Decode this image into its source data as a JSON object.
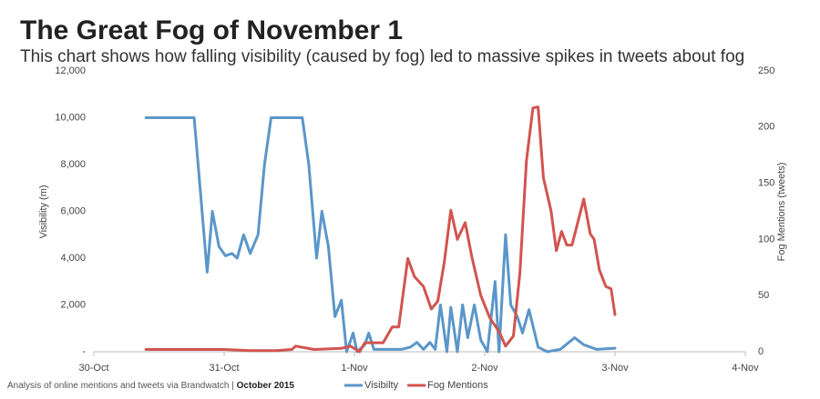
{
  "chart_data": {
    "type": "line",
    "title": "The Great Fog of November 1",
    "subtitle": "This chart shows how falling visibility (caused by fog) led to massive spikes in tweets about fog",
    "y_label": "Visibility (m)",
    "y2_label": "Fog Mentions (tweets)",
    "source": "Analysis of online mentions and tweets via Brandwatch |",
    "source_date": "October 2015",
    "xlim": [
      0,
      5
    ],
    "xticks": [
      {
        "value": 0,
        "label": "30-Oct"
      },
      {
        "value": 1,
        "label": "31-Oct"
      },
      {
        "value": 2,
        "label": "1-Nov"
      },
      {
        "value": 3,
        "label": "2-Nov"
      },
      {
        "value": 4,
        "label": "3-Nov"
      },
      {
        "value": 5,
        "label": "4-Nov"
      }
    ],
    "ylim": [
      0,
      12000
    ],
    "yticks": [
      {
        "value": 0,
        "label": "-"
      },
      {
        "value": 2000,
        "label": "2,000"
      },
      {
        "value": 4000,
        "label": "4,000"
      },
      {
        "value": 6000,
        "label": "6,000"
      },
      {
        "value": 8000,
        "label": "8,000"
      },
      {
        "value": 10000,
        "label": "10,000"
      },
      {
        "value": 12000,
        "label": "12,000"
      }
    ],
    "y2lim": [
      0,
      250
    ],
    "y2ticks": [
      0,
      50,
      100,
      150,
      200,
      250
    ],
    "legend": "bottom",
    "series": [
      {
        "name": "Visibilty",
        "color": "#5b96c9",
        "x": [
          0.4,
          0.77,
          0.87,
          0.91,
          0.96,
          1.01,
          1.06,
          1.1,
          1.15,
          1.2,
          1.26,
          1.31,
          1.36,
          1.6,
          1.65,
          1.71,
          1.75,
          1.8,
          1.85,
          1.9,
          1.94,
          1.99,
          2.02,
          2.08,
          2.11,
          2.15,
          2.36,
          2.43,
          2.48,
          2.53,
          2.58,
          2.62,
          2.66,
          2.71,
          2.74,
          2.79,
          2.83,
          2.87,
          2.92,
          2.97,
          3.02,
          3.08,
          3.11,
          3.16,
          3.2,
          3.25,
          3.29,
          3.34,
          3.41,
          3.48,
          3.58,
          3.69,
          3.76,
          3.86,
          4.0
        ],
        "values": [
          10000,
          10000,
          3400,
          6000,
          4500,
          4100,
          4200,
          4000,
          5000,
          4200,
          5000,
          8000,
          10000,
          10000,
          8000,
          4000,
          6000,
          4500,
          1500,
          2200,
          0,
          800,
          0,
          300,
          800,
          100,
          100,
          200,
          400,
          100,
          400,
          100,
          2000,
          0,
          1900,
          0,
          2000,
          600,
          2000,
          500,
          0,
          3000,
          0,
          5000,
          2000,
          1500,
          800,
          1800,
          200,
          0,
          100,
          600,
          300,
          100,
          150
        ]
      },
      {
        "name": "Fog Mentions",
        "color": "#d25450",
        "axis": "y2",
        "x": [
          0.4,
          0.6,
          0.8,
          1.0,
          1.2,
          1.4,
          1.52,
          1.55,
          1.69,
          1.9,
          1.97,
          2.04,
          2.08,
          2.22,
          2.29,
          2.34,
          2.41,
          2.46,
          2.53,
          2.59,
          2.64,
          2.69,
          2.74,
          2.79,
          2.85,
          2.9,
          2.97,
          3.04,
          3.11,
          3.16,
          3.22,
          3.27,
          3.32,
          3.37,
          3.41,
          3.45,
          3.51,
          3.55,
          3.59,
          3.63,
          3.67,
          3.76,
          3.81,
          3.84,
          3.88,
          3.93,
          3.97,
          4.0
        ],
        "values": [
          2,
          2,
          2,
          2,
          1,
          1,
          2,
          5,
          2,
          3,
          5,
          0,
          8,
          8,
          22,
          22,
          83,
          67,
          58,
          38,
          45,
          80,
          126,
          100,
          115,
          85,
          50,
          30,
          18,
          5,
          14,
          70,
          170,
          217,
          218,
          155,
          125,
          90,
          107,
          95,
          95,
          136,
          105,
          100,
          73,
          58,
          56,
          33
        ]
      }
    ]
  }
}
